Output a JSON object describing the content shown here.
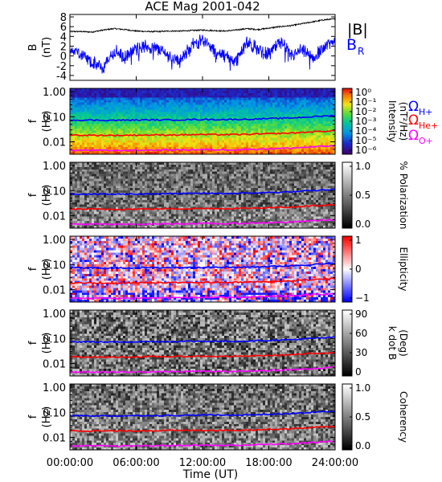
{
  "title": "ACE Mag 2001-042",
  "colors": {
    "b_total": "#000000",
    "b_r": "#0000ff",
    "h_plus": "#0000ff",
    "he_plus": "#ff0000",
    "o_plus": "#ff00ff",
    "axis": "#000000"
  },
  "chart_data": [
    {
      "type": "line",
      "panel": "field",
      "ylabel_line1": "B",
      "ylabel_line2": "(nT)",
      "ylim": [
        -5,
        8.5
      ],
      "yticks": [
        -4,
        -2,
        0,
        2,
        4,
        6,
        8
      ],
      "ytick_labels": [
        "-4",
        "-2",
        "0",
        "2",
        "4",
        "6",
        "8"
      ],
      "xlim": [
        0,
        24
      ],
      "series": [
        {
          "name": "|B|",
          "x": [
            0,
            1,
            2,
            3,
            4,
            5,
            6,
            7,
            8,
            9,
            10,
            11,
            12,
            13,
            14,
            15,
            16,
            17,
            18,
            19,
            20,
            21,
            22,
            23,
            24
          ],
          "values": [
            5.0,
            5.0,
            4.9,
            5.3,
            5.6,
            5.4,
            5.1,
            5.0,
            5.0,
            5.1,
            5.1,
            5.2,
            5.3,
            5.2,
            5.1,
            5.3,
            5.6,
            5.4,
            5.7,
            6.0,
            6.2,
            6.6,
            7.0,
            7.4,
            7.6
          ]
        },
        {
          "name": "B",
          "subscript": "R",
          "x": [
            0,
            1,
            2,
            3,
            4,
            5,
            6,
            7,
            8,
            9,
            10,
            11,
            12,
            13,
            14,
            15,
            16,
            17,
            18,
            19,
            20,
            21,
            22,
            23,
            24
          ],
          "values": [
            1.5,
            0.5,
            -1.5,
            -2.5,
            1.0,
            -0.5,
            1.5,
            2.0,
            1.5,
            0.0,
            -1.0,
            2.0,
            3.5,
            1.0,
            0.0,
            -1.0,
            2.5,
            1.5,
            0.5,
            3.0,
            0.0,
            1.0,
            -0.5,
            2.0,
            3.0
          ]
        }
      ],
      "legend": [
        "|B|",
        "B"
      ],
      "legend_subscripts": [
        "",
        "R"
      ]
    },
    {
      "type": "heatmap",
      "panel": "intensity",
      "ylabel_line1": "f",
      "ylabel_line2": "(Hz)",
      "yscale": "log",
      "ylim": [
        0.003,
        1.3
      ],
      "yticks": [
        1.0,
        0.1,
        0.01
      ],
      "ytick_labels": [
        "1.00",
        "0.10",
        "0.01"
      ],
      "colorbar_label_line1": "Intensity",
      "colorbar_label_line2": "(nT²/Hz)",
      "colorbar_ticks": [
        "10⁰",
        "10⁻¹",
        "10⁻²",
        "10⁻³",
        "10⁻⁴",
        "10⁻⁵",
        "10⁻⁶"
      ],
      "colormap": "rainbow",
      "legend": [
        "ΩH+",
        "ΩHe+",
        "ΩO+"
      ]
    },
    {
      "type": "heatmap",
      "panel": "polarization",
      "ylabel_line1": "f",
      "ylabel_line2": "(Hz)",
      "yscale": "log",
      "yticks": [
        1.0,
        0.1,
        0.01
      ],
      "ytick_labels": [
        "1.00",
        "0.10",
        "0.01"
      ],
      "colorbar_label_line1": "% Polarization",
      "colorbar_label_line2": "",
      "colorbar_ticks": [
        "1.0",
        "0.5",
        "0.0"
      ],
      "colormap": "gray"
    },
    {
      "type": "heatmap",
      "panel": "ellipticity",
      "ylabel_line1": "f",
      "ylabel_line2": "(Hz)",
      "yscale": "log",
      "yticks": [
        1.0,
        0.1,
        0.01
      ],
      "ytick_labels": [
        "1.00",
        "0.10",
        "0.01"
      ],
      "colorbar_label_line1": "Ellipticity",
      "colorbar_label_line2": "",
      "colorbar_ticks": [
        "1",
        "0",
        "−1"
      ],
      "colormap": "bluewhitered"
    },
    {
      "type": "heatmap",
      "panel": "k_dot_b",
      "ylabel_line1": "f",
      "ylabel_line2": "(Hz)",
      "yscale": "log",
      "yticks": [
        1.0,
        0.1,
        0.01
      ],
      "ytick_labels": [
        "1.00",
        "0.10",
        "0.01"
      ],
      "colorbar_label_line1": "k dot B",
      "colorbar_label_line2": "(Deg)",
      "colorbar_ticks": [
        "90",
        "60",
        "30",
        "0"
      ],
      "colormap": "gray"
    },
    {
      "type": "heatmap",
      "panel": "coherency",
      "ylabel_line1": "f",
      "ylabel_line2": "(Hz)",
      "yscale": "log",
      "yticks": [
        1.0,
        0.1,
        0.01
      ],
      "ytick_labels": [
        "1.00",
        "0.10",
        "0.01"
      ],
      "colorbar_label_line1": "Coherency",
      "colorbar_label_line2": "",
      "colorbar_ticks": [
        "1.0",
        "0.5",
        "0.0"
      ],
      "colormap": "gray"
    }
  ],
  "gyrofrequency_lines": {
    "hours": [
      0,
      2,
      4,
      6,
      8,
      10,
      12,
      14,
      16,
      18,
      20,
      22,
      24
    ],
    "H+": [
      0.074,
      0.073,
      0.072,
      0.074,
      0.075,
      0.076,
      0.078,
      0.077,
      0.079,
      0.084,
      0.089,
      0.1,
      0.112
    ],
    "He+": [
      0.0185,
      0.0183,
      0.018,
      0.0185,
      0.0188,
      0.019,
      0.0195,
      0.0193,
      0.0198,
      0.021,
      0.0223,
      0.025,
      0.028
    ],
    "O+": [
      0.0046,
      0.0046,
      0.0045,
      0.0046,
      0.0047,
      0.0048,
      0.0049,
      0.0048,
      0.005,
      0.0053,
      0.0056,
      0.0063,
      0.007
    ]
  },
  "x_axis": {
    "ticks": [
      0,
      6,
      12,
      18,
      24
    ],
    "tick_labels": [
      "00:00:00",
      "06:00:00",
      "12:00:00",
      "18:00:00",
      "24:00:00"
    ],
    "label": "Time (UT)"
  }
}
